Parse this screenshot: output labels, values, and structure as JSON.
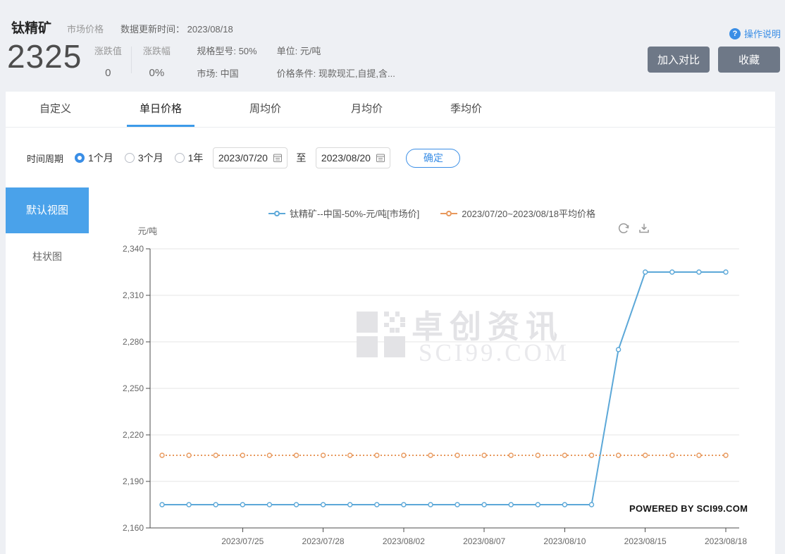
{
  "colors": {
    "accent": "#3a8ee6",
    "accent2": "#3d9be9",
    "sideblue": "#4aa2ea",
    "btn": "#6e7887",
    "axis": "#4d4d4d",
    "grid": "#e4e4e4",
    "wm": "#e3e3e6"
  },
  "header": {
    "title": "钛精矿",
    "subtitle": "市场价格",
    "update_label": "数据更新时间：",
    "update_date": "2023/08/18",
    "help_label": "操作说明",
    "help_icon": "?",
    "price": "2325",
    "change_label": "涨跌值",
    "change_value": "0",
    "change_pct_label": "涨跌幅",
    "change_pct_value": "0%",
    "spec": "规格型号: 50%",
    "market": "市场: 中国",
    "unit": "单位: 元/吨",
    "condition": "价格条件: 现款现汇,自提,含...",
    "compare_button": "加入对比",
    "favorite_button": "收藏"
  },
  "tabs": [
    {
      "key": "custom",
      "label": "自定义",
      "active": false
    },
    {
      "key": "daily-price",
      "label": "单日价格",
      "active": true
    },
    {
      "key": "weekly-avg",
      "label": "周均价",
      "active": false
    },
    {
      "key": "monthly-avg",
      "label": "月均价",
      "active": false
    },
    {
      "key": "quarterly-avg",
      "label": "季均价",
      "active": false
    }
  ],
  "filter": {
    "period_label": "时间周期",
    "options": [
      {
        "key": "1-month",
        "label": "1个月",
        "selected": true
      },
      {
        "key": "3-months",
        "label": "3个月",
        "selected": false
      },
      {
        "key": "1-year",
        "label": "1年",
        "selected": false
      }
    ],
    "start_date": "2023/07/20",
    "to_label": "至",
    "end_date": "2023/08/20",
    "confirm_button": "确定"
  },
  "sidebar": {
    "items": [
      {
        "key": "default-view",
        "label": "默认视图",
        "active": true
      },
      {
        "key": "bar-chart",
        "label": "柱状图",
        "active": false
      }
    ]
  },
  "watermark": {
    "line1": "卓创资讯",
    "line2": "SCI99.COM"
  },
  "powered_by": "POWERED BY SCI99.COM",
  "chart_data": {
    "type": "line",
    "ylabel": "元/吨",
    "ylim": [
      2160,
      2340
    ],
    "ytick_step": 30,
    "grid": true,
    "legend_position": "top",
    "x": [
      "2023/07/20",
      "2023/07/21",
      "2023/07/24",
      "2023/07/25",
      "2023/07/26",
      "2023/07/27",
      "2023/07/28",
      "2023/07/31",
      "2023/08/01",
      "2023/08/02",
      "2023/08/03",
      "2023/08/04",
      "2023/08/07",
      "2023/08/08",
      "2023/08/09",
      "2023/08/10",
      "2023/08/11",
      "2023/08/14",
      "2023/08/15",
      "2023/08/16",
      "2023/08/17",
      "2023/08/18"
    ],
    "xtick_labels": [
      "2023/07/25",
      "2023/07/28",
      "2023/08/02",
      "2023/08/07",
      "2023/08/10",
      "2023/08/15",
      "2023/08/18"
    ],
    "xtick_indices": [
      3,
      6,
      9,
      12,
      15,
      18,
      21
    ],
    "series": [
      {
        "key": "price-series",
        "name": "钛精矿--中国-50%-元/吨[市场价]",
        "color": "#5ca8d8",
        "style": "solid",
        "values": [
          2175,
          2175,
          2175,
          2175,
          2175,
          2175,
          2175,
          2175,
          2175,
          2175,
          2175,
          2175,
          2175,
          2175,
          2175,
          2175,
          2175,
          2275,
          2325,
          2325,
          2325,
          2325
        ]
      },
      {
        "key": "average-series",
        "name": "2023/07/20~2023/08/18平均价格",
        "color": "#e8985c",
        "style": "dotted",
        "values": [
          2206.8,
          2206.8,
          2206.8,
          2206.8,
          2206.8,
          2206.8,
          2206.8,
          2206.8,
          2206.8,
          2206.8,
          2206.8,
          2206.8,
          2206.8,
          2206.8,
          2206.8,
          2206.8,
          2206.8,
          2206.8,
          2206.8,
          2206.8,
          2206.8,
          2206.8
        ]
      }
    ]
  }
}
